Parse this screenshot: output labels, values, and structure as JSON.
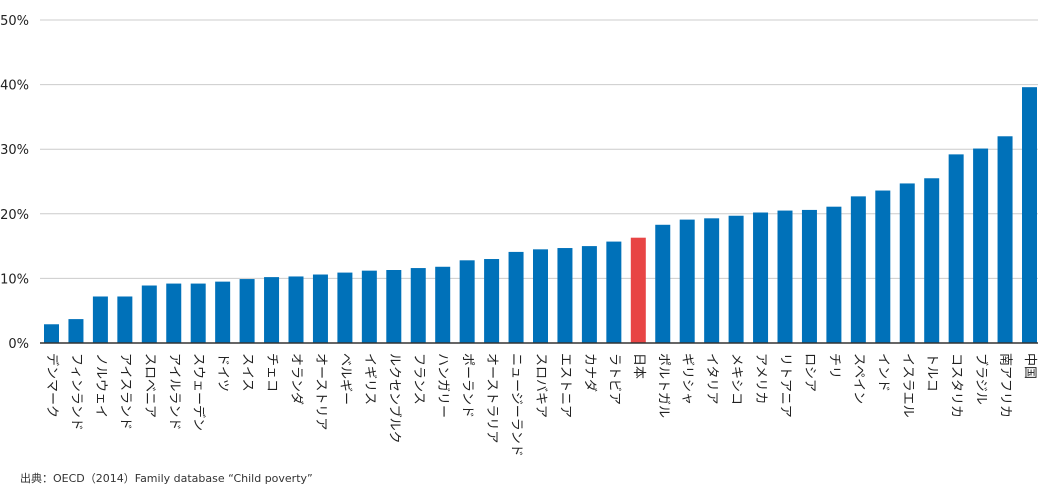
{
  "chart_data": {
    "type": "bar",
    "title": "",
    "xlabel": "",
    "ylabel": "",
    "ylim": [
      0,
      50
    ],
    "yticks": [
      0,
      10,
      20,
      30,
      40,
      50
    ],
    "ytick_labels": [
      "0%",
      "10%",
      "20%",
      "30%",
      "40%",
      "50%"
    ],
    "grid": true,
    "categories": [
      "デンマーク",
      "フィンランド",
      "ノルウェイ",
      "アイスランド",
      "スロベニア",
      "アイルランド",
      "スウェーデン",
      "ドイツ",
      "スイス",
      "チェコ",
      "オランダ",
      "オーストリア",
      "ベルギー",
      "イギリス",
      "ルクセンブルク",
      "フランス",
      "ハンガリー",
      "ポーランド",
      "オーストラリア",
      "ニュージーランド",
      "スロバキア",
      "エストニア",
      "カナダ",
      "ラトビア",
      "日本",
      "ポルトガル",
      "ギリシャ",
      "イタリア",
      "メキシコ",
      "アメリカ",
      "リトアニア",
      "ロシア",
      "チリ",
      "スペイン",
      "インド",
      "イスラエル",
      "トルコ",
      "コスタリカ",
      "ブラジル",
      "南アフリカ",
      "中国"
    ],
    "values": [
      2.9,
      3.7,
      7.2,
      7.2,
      8.9,
      9.2,
      9.2,
      9.5,
      9.9,
      10.2,
      10.3,
      10.6,
      10.9,
      11.2,
      11.3,
      11.6,
      11.8,
      12.8,
      13.0,
      14.1,
      14.5,
      14.7,
      15.0,
      15.7,
      16.3,
      18.3,
      19.1,
      19.3,
      19.7,
      20.2,
      20.5,
      20.6,
      21.1,
      22.7,
      23.6,
      24.7,
      25.5,
      29.2,
      30.1,
      32.0,
      39.6
    ],
    "highlight_category": "日本",
    "colors": {
      "bar": "#0071b9",
      "highlight": "#e84545",
      "grid": "#cccccc",
      "axis": "#333333"
    }
  },
  "source": "出典：OECD（2014）Family database “Child poverty”"
}
